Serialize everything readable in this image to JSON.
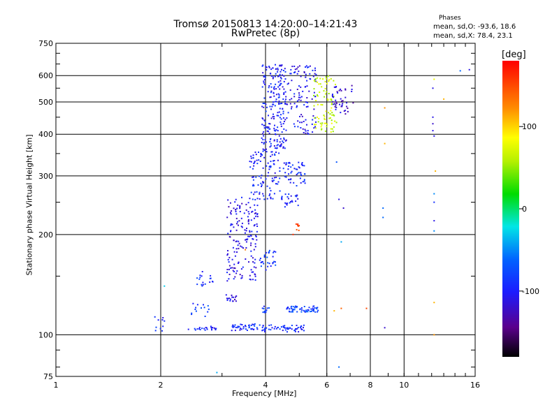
{
  "titles": {
    "line1": "Tromsø 20150813 14:20:00–14:21:43",
    "line2": "RwPretec (8p)"
  },
  "phases": {
    "title": "Phases",
    "o_line": "mean, sd,O: -93.6, 18.6",
    "x_line": "mean, sd,X:  78.4, 23.1"
  },
  "colorbar": {
    "unit": "[deg]",
    "range": [
      -180,
      180
    ],
    "ticks": [
      100,
      0,
      -100
    ]
  },
  "chart_data": {
    "type": "scatter",
    "title": "Tromsø 20150813 14:20:00–14:21:43",
    "subtitle": "RwPretec (8p)",
    "xlabel": "Frequency [MHz]",
    "ylabel": "Stationary phase Virtual Height [km]",
    "x_scale": "log",
    "y_scale": "log",
    "xlim": [
      1,
      16
    ],
    "ylim": [
      75,
      750
    ],
    "x_ticks": [
      1,
      2,
      4,
      6,
      8,
      10,
      16
    ],
    "y_ticks": [
      75,
      100,
      200,
      300,
      400,
      500,
      600,
      750
    ],
    "grid": true,
    "color_by": "phase [deg]",
    "clusters": [
      {
        "f": [
          1.9,
          2.05
        ],
        "h": [
          100,
          115
        ],
        "phase": -95,
        "n": 10
      },
      {
        "f": [
          2.4,
          2.9
        ],
        "h": [
          103,
          106
        ],
        "phase": -95,
        "n": 22
      },
      {
        "f": [
          2.45,
          2.8
        ],
        "h": [
          112,
          125
        ],
        "phase": -85,
        "n": 14
      },
      {
        "f": [
          2.5,
          2.9
        ],
        "h": [
          140,
          155
        ],
        "phase": -95,
        "n": 18
      },
      {
        "f": [
          3.0,
          3.3
        ],
        "h": [
          126,
          132
        ],
        "phase": -115,
        "n": 16
      },
      {
        "f": [
          3.1,
          3.8
        ],
        "h": [
          145,
          260
        ],
        "phase": -110,
        "n": 170
      },
      {
        "f": [
          3.2,
          3.9
        ],
        "h": [
          103,
          108
        ],
        "phase": -92,
        "n": 40
      },
      {
        "f": [
          3.85,
          5.2
        ],
        "h": [
          102,
          107
        ],
        "phase": -92,
        "n": 55
      },
      {
        "f": [
          3.85,
          4.3
        ],
        "h": [
          155,
          180
        ],
        "phase": -85,
        "n": 30
      },
      {
        "f": [
          4.6,
          5.7
        ],
        "h": [
          117,
          122
        ],
        "phase": -80,
        "n": 60
      },
      {
        "f": [
          3.9,
          4.1
        ],
        "h": [
          116,
          122
        ],
        "phase": -85,
        "n": 12
      },
      {
        "f": [
          3.6,
          4.4
        ],
        "h": [
          255,
          360
        ],
        "phase": -95,
        "n": 110
      },
      {
        "f": [
          3.9,
          4.6
        ],
        "h": [
          360,
          650
        ],
        "phase": -100,
        "n": 220
      },
      {
        "f": [
          4.5,
          5.2
        ],
        "h": [
          280,
          330
        ],
        "phase": -95,
        "n": 50
      },
      {
        "f": [
          4.4,
          5.0
        ],
        "h": [
          240,
          265
        ],
        "phase": -95,
        "n": 25
      },
      {
        "f": [
          4.6,
          5.6
        ],
        "h": [
          400,
          650
        ],
        "phase": -105,
        "n": 110
      },
      {
        "f": [
          5.5,
          6.4
        ],
        "h": [
          400,
          600
        ],
        "phase": 65,
        "n": 90
      },
      {
        "f": [
          6.2,
          7.2
        ],
        "h": [
          460,
          560
        ],
        "phase": -120,
        "n": 45
      },
      {
        "f": [
          4.9,
          5.0
        ],
        "h": [
          205,
          220
        ],
        "phase": 150,
        "n": 8
      }
    ],
    "isolated_points": [
      {
        "f": 2.05,
        "h": 140,
        "phase": -30
      },
      {
        "f": 2.9,
        "h": 77,
        "phase": -40
      },
      {
        "f": 3.5,
        "h": 180,
        "phase": 130
      },
      {
        "f": 4.8,
        "h": 200,
        "phase": 160
      },
      {
        "f": 6.3,
        "h": 118,
        "phase": 110
      },
      {
        "f": 6.6,
        "h": 120,
        "phase": 140
      },
      {
        "f": 6.5,
        "h": 80,
        "phase": -60
      },
      {
        "f": 6.6,
        "h": 190,
        "phase": -40
      },
      {
        "f": 6.4,
        "h": 330,
        "phase": -70
      },
      {
        "f": 6.5,
        "h": 255,
        "phase": -110
      },
      {
        "f": 6.7,
        "h": 240,
        "phase": -120
      },
      {
        "f": 7.8,
        "h": 120,
        "phase": 150
      },
      {
        "f": 8.8,
        "h": 480,
        "phase": 120
      },
      {
        "f": 8.8,
        "h": 375,
        "phase": 110
      },
      {
        "f": 8.7,
        "h": 240,
        "phase": -60
      },
      {
        "f": 8.7,
        "h": 225,
        "phase": -60
      },
      {
        "f": 8.8,
        "h": 105,
        "phase": -120
      },
      {
        "f": 12.2,
        "h": 585,
        "phase": 80
      },
      {
        "f": 12.1,
        "h": 550,
        "phase": -110
      },
      {
        "f": 12.1,
        "h": 450,
        "phase": -110
      },
      {
        "f": 12.1,
        "h": 430,
        "phase": -120
      },
      {
        "f": 12.1,
        "h": 410,
        "phase": -110
      },
      {
        "f": 12.2,
        "h": 395,
        "phase": -110
      },
      {
        "f": 12.3,
        "h": 310,
        "phase": 110
      },
      {
        "f": 12.2,
        "h": 265,
        "phase": -50
      },
      {
        "f": 12.2,
        "h": 250,
        "phase": -90
      },
      {
        "f": 12.2,
        "h": 220,
        "phase": -110
      },
      {
        "f": 12.2,
        "h": 205,
        "phase": -50
      },
      {
        "f": 12.2,
        "h": 125,
        "phase": 110
      },
      {
        "f": 12.2,
        "h": 100,
        "phase": 120
      },
      {
        "f": 13.0,
        "h": 510,
        "phase": 110
      },
      {
        "f": 14.5,
        "h": 620,
        "phase": -60
      },
      {
        "f": 15.4,
        "h": 625,
        "phase": -110
      }
    ]
  }
}
